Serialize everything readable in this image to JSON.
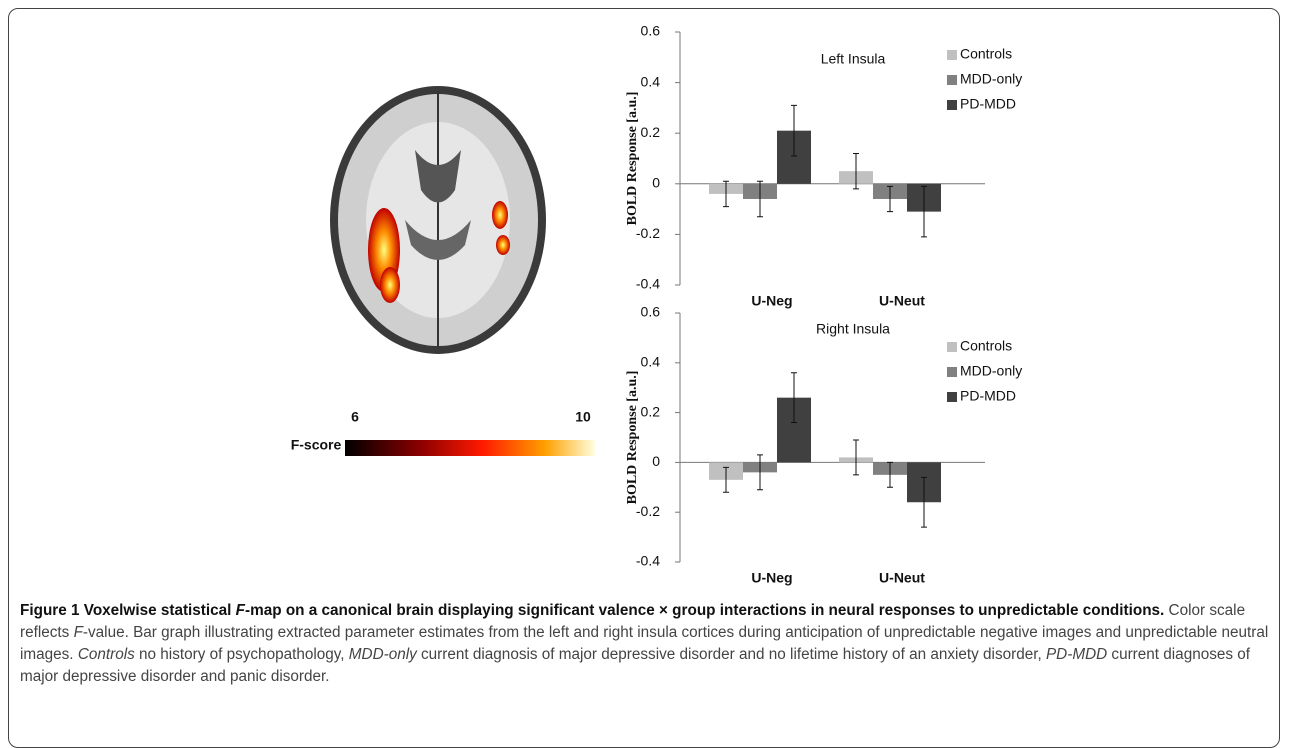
{
  "chart_data": [
    {
      "type": "bar",
      "title": "Left Insula",
      "y_label": "BOLD Response [a.u.]",
      "categories": [
        "U-Neg",
        "U-Neut"
      ],
      "series": [
        {
          "name": "Controls",
          "color": "#c0c0c0",
          "values": [
            -0.04,
            0.05
          ],
          "errors": [
            0.05,
            0.07
          ]
        },
        {
          "name": "MDD-only",
          "color": "#808080",
          "values": [
            -0.06,
            -0.06
          ],
          "errors": [
            0.07,
            0.05
          ]
        },
        {
          "name": "PD-MDD",
          "color": "#404040",
          "values": [
            0.21,
            -0.11
          ],
          "errors": [
            0.1,
            0.1
          ]
        }
      ],
      "ylim": [
        -0.4,
        0.6
      ],
      "yticks": [
        -0.4,
        -0.2,
        0,
        0.2,
        0.4,
        0.6
      ],
      "grid": false,
      "legend": "top-right"
    },
    {
      "type": "bar",
      "title": "Right Insula",
      "y_label": "BOLD Response [a.u.]",
      "categories": [
        "U-Neg",
        "U-Neut"
      ],
      "series": [
        {
          "name": "Controls",
          "color": "#c0c0c0",
          "values": [
            -0.07,
            0.02
          ],
          "errors": [
            0.05,
            0.07
          ]
        },
        {
          "name": "MDD-only",
          "color": "#808080",
          "values": [
            -0.04,
            -0.05
          ],
          "errors": [
            0.07,
            0.05
          ]
        },
        {
          "name": "PD-MDD",
          "color": "#404040",
          "values": [
            0.26,
            -0.16
          ],
          "errors": [
            0.1,
            0.1
          ]
        }
      ],
      "ylim": [
        -0.4,
        0.6
      ],
      "yticks": [
        -0.4,
        -0.2,
        0,
        0.2,
        0.4,
        0.6
      ],
      "grid": false,
      "legend": "top-right"
    }
  ],
  "figure": {
    "colorbar": {
      "label": "F-score",
      "ticks": [
        6,
        10
      ]
    },
    "caption": [
      {
        "text": "Figure 1 Voxelwise statistical ",
        "style": "bold"
      },
      {
        "text": "F",
        "style": "bold-italic"
      },
      {
        "text": "-map on a canonical brain displaying significant valence × group interactions in neural responses to unpredictable conditions.",
        "style": "bold"
      },
      {
        "text": " Color scale reflects ",
        "style": "normal"
      },
      {
        "text": "F",
        "style": "italic"
      },
      {
        "text": "-value. Bar graph illustrating extracted parameter estimates from the left and right insula cortices during anticipation of unpredictable negative images and unpredictable neutral images. ",
        "style": "normal"
      },
      {
        "text": "Controls",
        "style": "italic"
      },
      {
        "text": " no history of psychopathology, ",
        "style": "normal"
      },
      {
        "text": "MDD-only",
        "style": "italic"
      },
      {
        "text": " current diagnosis of major depressive disorder and no lifetime history of an anxiety disorder, ",
        "style": "normal"
      },
      {
        "text": "PD-MDD",
        "style": "italic"
      },
      {
        "text": " current diagnoses of major depressive disorder and panic disorder.",
        "style": "normal"
      }
    ]
  }
}
